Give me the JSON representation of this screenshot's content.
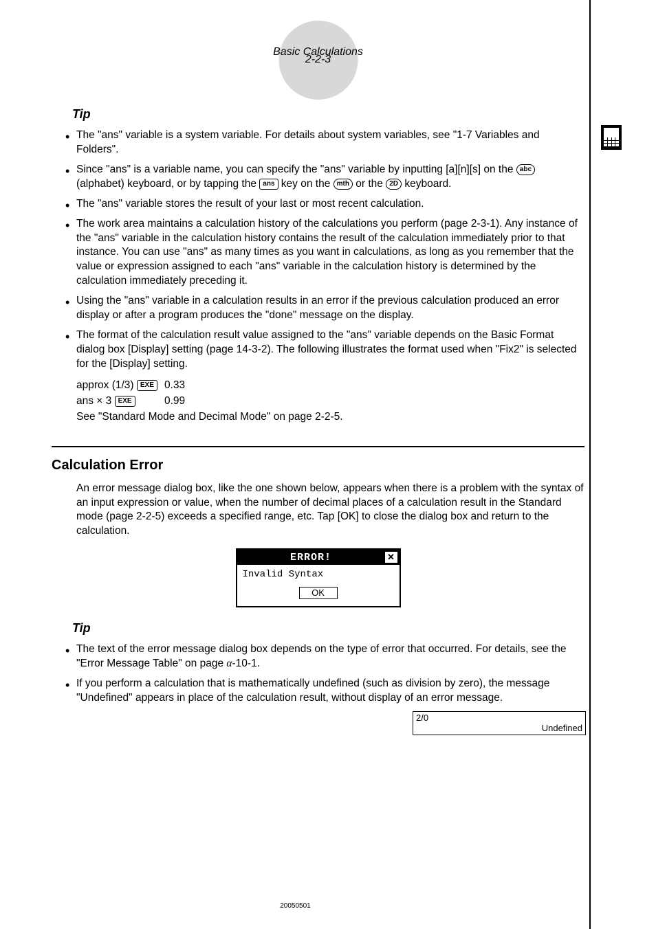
{
  "header": {
    "page_num": "2-2-3",
    "title": "Basic Calculations"
  },
  "tip1": {
    "heading": "Tip",
    "bullets": {
      "b1_part1": "The \"ans\" variable is a system variable. For details about system variables, see \"1-7 Variables and Folders\".",
      "b2_part1": "Since \"ans\" is a variable name, you can specify the \"ans\" variable by inputting [a][n][s] on the ",
      "b2_part2": " (alphabet) keyboard, or by tapping the ",
      "b2_part3": " key on the ",
      "b2_part4": " or the ",
      "b2_part5": " keyboard.",
      "b3": "The \"ans\" variable stores the result of your last or most recent calculation.",
      "b4": "The work area maintains a calculation history of the calculations you perform (page 2-3-1). Any instance of the \"ans\" variable in the calculation history contains the result of the calculation immediately prior to that instance. You can use \"ans\" as many times as you want in calculations, as long as you remember that the value or expression assigned to each \"ans\" variable in the calculation history is determined by the calculation immediately preceding it.",
      "b5": "Using the \"ans\" variable in a calculation results in an error if the previous calculation produced an error display or after a program produces the \"done\" message on the display.",
      "b6": "The format of the calculation result value assigned to the \"ans\" variable depends on the Basic Format dialog box [Display] setting (page 14-3-2). The following illustrates the format used when \"Fix2\" is selected for the [Display] setting."
    },
    "keys": {
      "abc": "abc",
      "ans": "ans",
      "mth": "mth",
      "twoD": "2D",
      "exe": "EXE"
    },
    "example": {
      "row1_left": "approx (1/3) ",
      "row1_right": "0.33",
      "row2_left": "ans × 3 ",
      "row2_right": "0.99",
      "footnote": "See \"Standard Mode and Decimal Mode\" on page 2-2-5."
    }
  },
  "section": {
    "heading": "Calculation Error",
    "body": "An error message dialog box, like the one shown below, appears when there is a problem with the syntax of an input expression or value, when the number of decimal places of a calculation result in the Standard mode (page 2-2-5) exceeds a specified range, etc. Tap [OK] to close the dialog box and return to the calculation."
  },
  "error_dialog": {
    "title": "ERROR!",
    "close": "✕",
    "message": "Invalid Syntax",
    "ok": "OK"
  },
  "tip2": {
    "heading": "Tip",
    "b1_part1": "The text of the error message dialog box depends on the type of error that occurred. For details, see the \"Error Message Table\" on page ",
    "b1_alpha": "α",
    "b1_part2": "-10-1.",
    "b2": "If you perform a calculation that is mathematically undefined (such as division by zero), the message \"Undefined\" appears in place of the calculation result, without display of an error message."
  },
  "undefined_box": {
    "input": "2/0",
    "result": "Undefined"
  },
  "footer": {
    "code": "20050501"
  }
}
